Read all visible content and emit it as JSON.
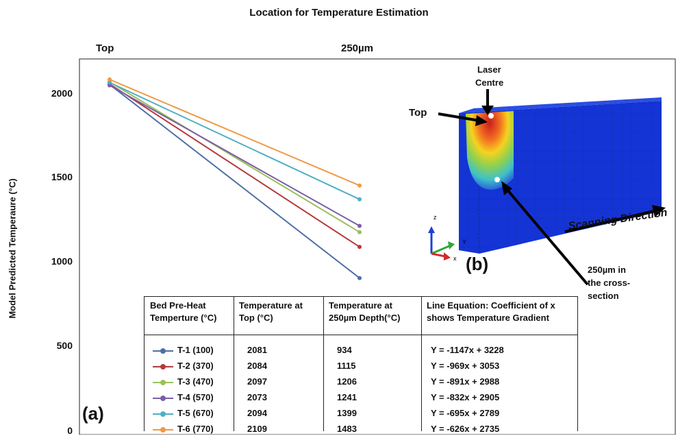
{
  "chart_data": {
    "type": "line",
    "title": "Location for Temperature Estimation",
    "categories": [
      "Top",
      "250µm"
    ],
    "ylabel": "Model Predicted Temperaure (°C)",
    "ylim": [
      0,
      2200
    ],
    "yticks": [
      "0",
      "500",
      "1000",
      "1500",
      "2000"
    ],
    "grid": false,
    "panel_label": "(a)",
    "series": [
      {
        "name": "T-1 (100)",
        "values": [
          2060,
          910
        ],
        "color": "#4F6FA6",
        "top": "2081",
        "depth": "934",
        "equation": "Y = -1147x + 3228"
      },
      {
        "name": "T-2 (370)",
        "values": [
          2063,
          1095
        ],
        "color": "#B5393B",
        "top": "2084",
        "depth": "1115",
        "equation": "Y = -969x + 3053"
      },
      {
        "name": "T-3 (470)",
        "values": [
          2075,
          1183
        ],
        "color": "#9CBF5A",
        "top": "2097",
        "depth": "1206",
        "equation": "Y = -891x + 2988"
      },
      {
        "name": "T-4 (570)",
        "values": [
          2055,
          1220
        ],
        "color": "#7B5EA7",
        "top": "2073",
        "depth": "1241",
        "equation": "Y = -832x + 2905"
      },
      {
        "name": "T-5 (670)",
        "values": [
          2072,
          1378
        ],
        "color": "#4DAFC4",
        "top": "2094",
        "depth": "1399",
        "equation": "Y = -695x + 2789"
      },
      {
        "name": "T-6 (770)",
        "values": [
          2090,
          1460
        ],
        "color": "#EE9A45",
        "top": "2109",
        "depth": "1483",
        "equation": "Y = -626x + 2735"
      }
    ],
    "table_headers": {
      "col1": [
        "Bed Pre-Heat",
        "Temperture (°C)"
      ],
      "col2": [
        "Temperature at",
        "Top  (°C)"
      ],
      "col3": [
        "Temperature at",
        "250µm Depth(°C)"
      ],
      "col4": [
        "Line Equation: Coefficient of x",
        "shows Temperature Gradient"
      ]
    }
  },
  "inset": {
    "panel_label": "(b)",
    "laser_label": [
      "Laser",
      "Centre"
    ],
    "top_label": "Top",
    "depth_label": [
      "250µm in",
      "the cross-",
      "section"
    ],
    "scan_label": "Scanning Direction",
    "axes": {
      "z": "z",
      "y": "Y",
      "x": "x"
    }
  }
}
